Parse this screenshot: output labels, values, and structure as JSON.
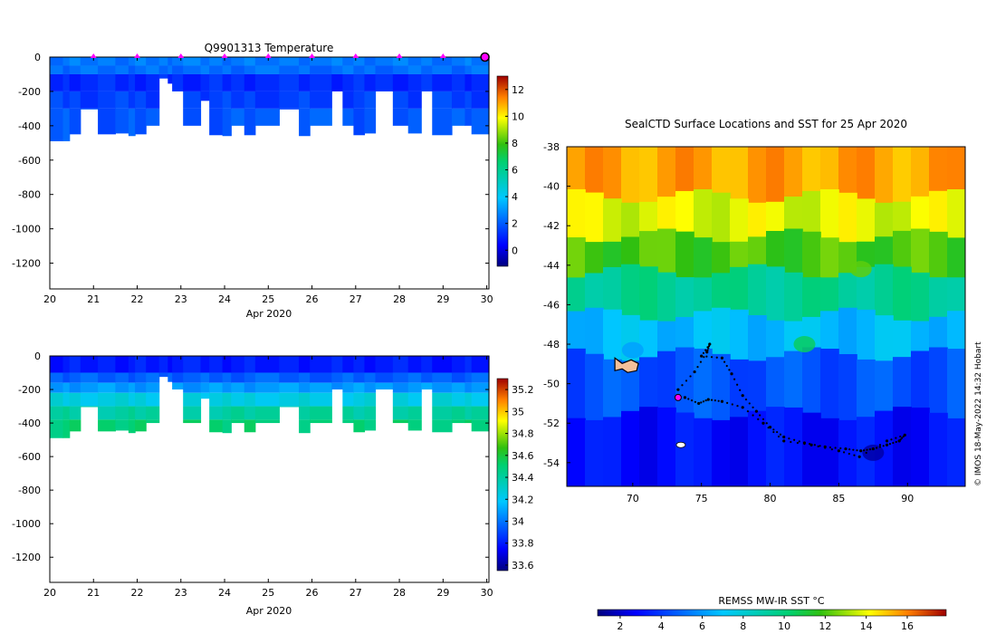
{
  "chart_data": [
    {
      "type": "heatmap",
      "title": "Q9901313  Temperature",
      "xlabel": "Apr 2020",
      "ylabel": "",
      "x_ticks": [
        "20",
        "21",
        "22",
        "23",
        "24",
        "25",
        "26",
        "27",
        "28",
        "29",
        "30"
      ],
      "xlim": [
        20,
        30.05
      ],
      "y_ticks": [
        "0",
        "-200",
        "-400",
        "-600",
        "-800",
        "-1000",
        "-1200"
      ],
      "ylim": [
        -1350,
        0
      ],
      "profile_markers_days": [
        21,
        22,
        23,
        24,
        25,
        26,
        27,
        28,
        29,
        30
      ],
      "colorbar": {
        "ticks": [
          "12",
          "10",
          "8",
          "6",
          "4",
          "2",
          "0"
        ],
        "min": -1.2,
        "max": 13,
        "palette": "jet"
      },
      "profiles": [
        {
          "start": 20.0,
          "end": 20.3,
          "depth": 490
        },
        {
          "start": 20.3,
          "end": 20.45,
          "depth": 490
        },
        {
          "start": 20.45,
          "end": 20.7,
          "depth": 450
        },
        {
          "start": 20.7,
          "end": 21.1,
          "depth": 305
        },
        {
          "start": 21.1,
          "end": 21.5,
          "depth": 450
        },
        {
          "start": 21.5,
          "end": 21.8,
          "depth": 445
        },
        {
          "start": 21.8,
          "end": 21.95,
          "depth": 460
        },
        {
          "start": 21.95,
          "end": 22.2,
          "depth": 450
        },
        {
          "start": 22.2,
          "end": 22.5,
          "depth": 400
        },
        {
          "start": 22.5,
          "end": 22.7,
          "depth": 125
        },
        {
          "start": 22.7,
          "end": 22.8,
          "depth": 155
        },
        {
          "start": 22.8,
          "end": 23.05,
          "depth": 200
        },
        {
          "start": 23.05,
          "end": 23.45,
          "depth": 400
        },
        {
          "start": 23.45,
          "end": 23.65,
          "depth": 255
        },
        {
          "start": 23.65,
          "end": 23.95,
          "depth": 455
        },
        {
          "start": 23.95,
          "end": 24.15,
          "depth": 460
        },
        {
          "start": 24.15,
          "end": 24.45,
          "depth": 400
        },
        {
          "start": 24.45,
          "end": 24.7,
          "depth": 455
        },
        {
          "start": 24.7,
          "end": 25.25,
          "depth": 400
        },
        {
          "start": 25.25,
          "end": 25.7,
          "depth": 305
        },
        {
          "start": 25.7,
          "end": 25.95,
          "depth": 460
        },
        {
          "start": 25.95,
          "end": 26.45,
          "depth": 400
        },
        {
          "start": 26.45,
          "end": 26.7,
          "depth": 200
        },
        {
          "start": 26.7,
          "end": 26.95,
          "depth": 400
        },
        {
          "start": 26.95,
          "end": 27.2,
          "depth": 455
        },
        {
          "start": 27.2,
          "end": 27.45,
          "depth": 445
        },
        {
          "start": 27.45,
          "end": 27.85,
          "depth": 200
        },
        {
          "start": 27.85,
          "end": 28.2,
          "depth": 400
        },
        {
          "start": 28.2,
          "end": 28.5,
          "depth": 445
        },
        {
          "start": 28.5,
          "end": 28.75,
          "depth": 200
        },
        {
          "start": 28.75,
          "end": 29.2,
          "depth": 455
        },
        {
          "start": 29.2,
          "end": 29.5,
          "depth": 400
        },
        {
          "start": 29.5,
          "end": 29.65,
          "depth": 400
        },
        {
          "start": 29.65,
          "end": 30.05,
          "depth": 450
        }
      ],
      "layers": [
        {
          "depth_top": 0,
          "depth_bottom": 50,
          "value": 2.5
        },
        {
          "depth_top": 50,
          "depth_bottom": 100,
          "value": 2.3
        },
        {
          "depth_top": 100,
          "depth_bottom": 200,
          "value": 1.1
        },
        {
          "depth_top": 200,
          "depth_bottom": 300,
          "value": 1.5
        },
        {
          "depth_top": 300,
          "depth_bottom": 500,
          "value": 1.9
        }
      ]
    },
    {
      "type": "heatmap",
      "title": "",
      "xlabel": "Apr 2020",
      "ylabel": "",
      "x_ticks": [
        "20",
        "21",
        "22",
        "23",
        "24",
        "25",
        "26",
        "27",
        "28",
        "29",
        "30"
      ],
      "xlim": [
        20,
        30.05
      ],
      "y_ticks": [
        "0",
        "-200",
        "-400",
        "-600",
        "-800",
        "-1000",
        "-1200"
      ],
      "ylim": [
        -1350,
        0
      ],
      "colorbar": {
        "ticks": [
          "35.2",
          "35",
          "34.8",
          "34.6",
          "34.4",
          "34.2",
          "34",
          "33.8",
          "33.6"
        ],
        "min": 33.55,
        "max": 35.3,
        "palette": "jet"
      },
      "layers": [
        {
          "depth_top": 0,
          "depth_bottom": 100,
          "value": 33.8
        },
        {
          "depth_top": 100,
          "depth_bottom": 160,
          "value": 33.95
        },
        {
          "depth_top": 160,
          "depth_bottom": 220,
          "value": 34.08
        },
        {
          "depth_top": 220,
          "depth_bottom": 300,
          "value": 34.25
        },
        {
          "depth_top": 300,
          "depth_bottom": 380,
          "value": 34.4
        },
        {
          "depth_top": 380,
          "depth_bottom": 500,
          "value": 34.5
        }
      ]
    },
    {
      "type": "heatmap",
      "title": "SealCTD Surface Locations and SST for 25 Apr 2020",
      "xlabel": "",
      "ylabel": "",
      "x_ticks": [
        "70",
        "75",
        "80",
        "85",
        "90"
      ],
      "xlim": [
        65.2,
        94.2
      ],
      "y_ticks": [
        "-38",
        "-40",
        "-42",
        "-44",
        "-46",
        "-48",
        "-50",
        "-52",
        "-54"
      ],
      "ylim": [
        -55.2,
        -38
      ],
      "colorbar": {
        "label": "REMSS MW-IR SST °C",
        "ticks": [
          "2",
          "4",
          "6",
          "8",
          "10",
          "12",
          "14",
          "16"
        ],
        "min": 0.9,
        "max": 17.9,
        "palette": "jet"
      },
      "sst_bands": [
        {
          "lat_top": -38,
          "lat_bottom": -40.5,
          "value": 15.5
        },
        {
          "lat_top": -40.5,
          "lat_bottom": -42.5,
          "value": 13.8
        },
        {
          "lat_top": -42.5,
          "lat_bottom": -44.3,
          "value": 12.0
        },
        {
          "lat_top": -44.3,
          "lat_bottom": -46.5,
          "value": 9.5
        },
        {
          "lat_top": -46.5,
          "lat_bottom": -48.5,
          "value": 6.8
        },
        {
          "lat_top": -48.5,
          "lat_bottom": -51.5,
          "value": 4.5
        },
        {
          "lat_top": -51.5,
          "lat_bottom": -55.2,
          "value": 3.0
        }
      ],
      "track": [
        [
          73.3,
          -50.3
        ],
        [
          74.5,
          -49.4
        ],
        [
          75.4,
          -48.4
        ],
        [
          75.6,
          -48.0
        ],
        [
          75.0,
          -48.6
        ],
        [
          76.5,
          -48.7
        ],
        [
          77.2,
          -49.5
        ],
        [
          78.0,
          -50.6
        ],
        [
          79.0,
          -51.4
        ],
        [
          80.0,
          -52.2
        ],
        [
          81.0,
          -52.7
        ],
        [
          82.5,
          -53.0
        ],
        [
          84.0,
          -53.2
        ],
        [
          85.5,
          -53.3
        ],
        [
          86.6,
          -53.4
        ],
        [
          87.5,
          -53.3
        ],
        [
          88.5,
          -53.1
        ],
        [
          89.4,
          -52.9
        ],
        [
          89.8,
          -52.6
        ],
        [
          88.5,
          -52.9
        ],
        [
          86.5,
          -53.7
        ],
        [
          85.0,
          -53.4
        ],
        [
          83.0,
          -53.1
        ],
        [
          81.0,
          -52.9
        ],
        [
          79.5,
          -52.0
        ],
        [
          78.0,
          -51.2
        ],
        [
          76.5,
          -50.9
        ],
        [
          75.5,
          -50.8
        ],
        [
          74.8,
          -51.0
        ],
        [
          73.8,
          -50.7
        ]
      ],
      "current_position": [
        73.3,
        -50.7
      ],
      "islands": [
        {
          "name": "Kerguelen",
          "lon": 69.3,
          "lat": -49.3
        },
        {
          "name": "Heard",
          "lon": 73.5,
          "lat": -53.1
        }
      ]
    }
  ],
  "watermark": "© IMOS 18-May-2022 14:32 Hobart",
  "colors": {
    "axis": "#000000",
    "marker": "#ff00ff",
    "track": "#000000",
    "land": "#f4c09a"
  }
}
